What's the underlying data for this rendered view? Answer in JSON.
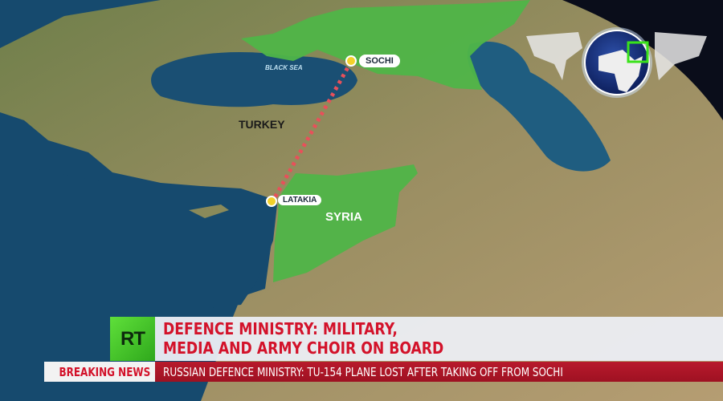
{
  "map": {
    "labels": {
      "sochi": "SOCHI",
      "black_sea": "BLACK SEA",
      "turkey": "TURKEY",
      "latakia": "LATAKIA",
      "syria": "SYRIA"
    },
    "colors": {
      "highlight": "#4fb548",
      "route": "#e8505a",
      "sea": "#1a4f73",
      "land": "#8c8a5c",
      "marker": "#f3d12a"
    }
  },
  "channel": {
    "logo": "RT",
    "logo_color": "#4fd232"
  },
  "lower_third": {
    "headline_line1": "DEFENCE MINISTRY: MILITARY,",
    "headline_line2": "MEDIA AND ARMY CHOIR ON BOARD",
    "breaking_label": "BREAKING NEWS",
    "ticker": "RUSSIAN DEFENCE MINISTRY: TU-154 PLANE LOST AFTER TAKING OFF FROM SOCHI"
  },
  "globe_icon": "globe-africa-europe-icon"
}
